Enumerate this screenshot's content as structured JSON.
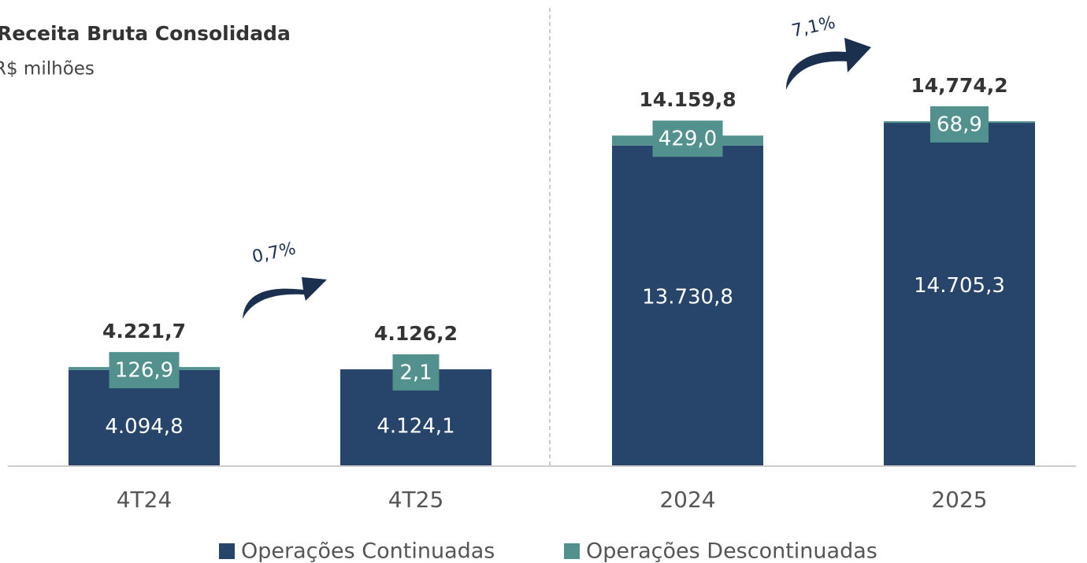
{
  "chart_data": {
    "type": "stacked_bar",
    "title": "Receita Bruta Consolidada",
    "subtitle": "R$ milhões",
    "categories": [
      "4T24",
      "4T25",
      "2024",
      "2025"
    ],
    "series": [
      {
        "name": "Operações Continuadas",
        "color": "#27456a",
        "values": [
          4094.8,
          4124.1,
          13730.8,
          14705.3
        ],
        "value_labels": [
          "4.094,8",
          "4.124,1",
          "13.730,8",
          "14.705,3"
        ]
      },
      {
        "name": "Operações Descontinuadas",
        "color": "#53918f",
        "values": [
          126.9,
          2.1,
          429.0,
          68.9
        ],
        "value_labels": [
          "126,9",
          "2,1",
          "429,0",
          "68,9"
        ]
      }
    ],
    "totals": [
      4221.7,
      4126.2,
      14159.8,
      14774.2
    ],
    "total_labels": [
      "4.221,7",
      "4.126,2",
      "14.159,8",
      "14,774,2"
    ],
    "annotations": [
      "0,7%",
      "7,1%"
    ]
  }
}
